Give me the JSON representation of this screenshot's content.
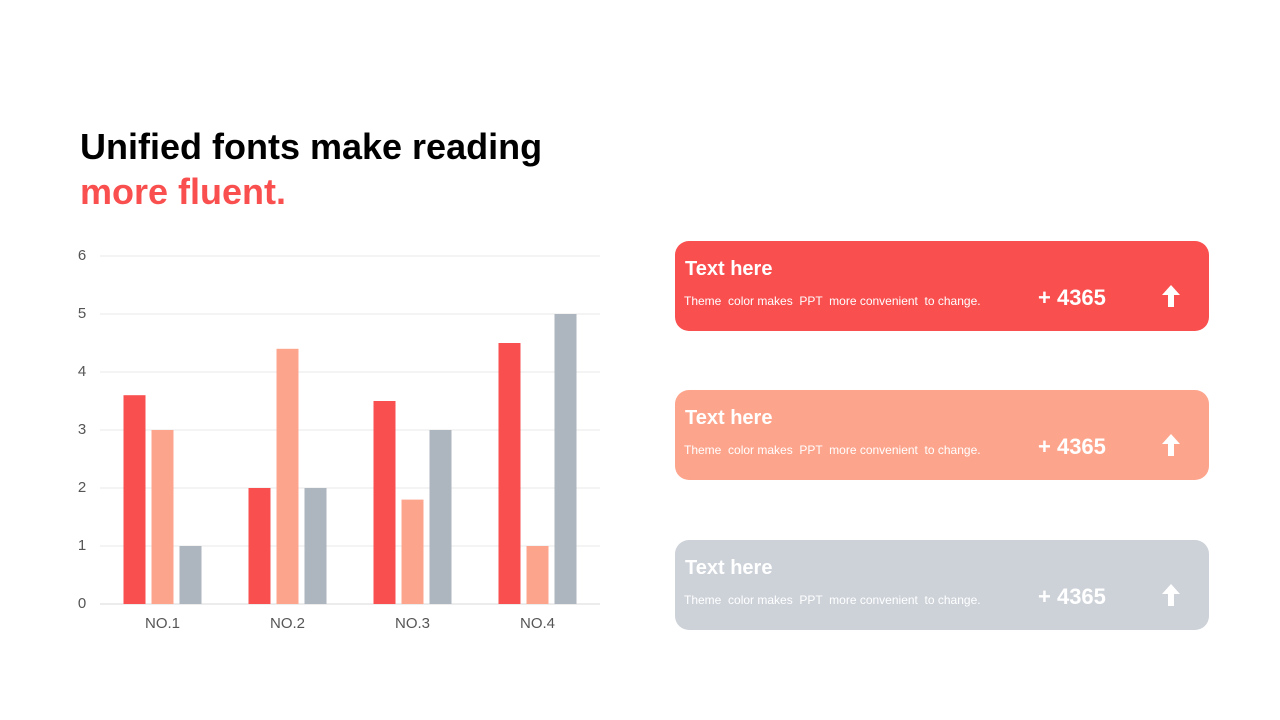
{
  "title": {
    "line1": "Unified fonts make reading",
    "line2": "more fluent."
  },
  "chart_data": {
    "type": "bar",
    "categories": [
      "NO.1",
      "NO.2",
      "NO.3",
      "NO.4"
    ],
    "series": [
      {
        "color": "#f94f4f",
        "values": [
          3.6,
          2,
          3.5,
          4.5
        ]
      },
      {
        "color": "#fda58c",
        "values": [
          3,
          4.4,
          1.8,
          1
        ]
      },
      {
        "color": "#adb5be",
        "values": [
          1,
          2,
          3,
          5
        ]
      }
    ],
    "ylim": [
      0,
      6
    ],
    "yticks": [
      0,
      1,
      2,
      3,
      4,
      5,
      6
    ],
    "grid": true
  },
  "cards": [
    {
      "heading": "Text here",
      "text": "Theme  color makes  PPT  more convenient  to change.",
      "figure": "+ 4365"
    },
    {
      "heading": "Text here",
      "text": "Theme  color makes  PPT  more convenient  to change.",
      "figure": "+ 4365"
    },
    {
      "heading": "Text here",
      "text": "Theme  color makes  PPT  more convenient  to change.",
      "figure": "+ 4365"
    }
  ]
}
